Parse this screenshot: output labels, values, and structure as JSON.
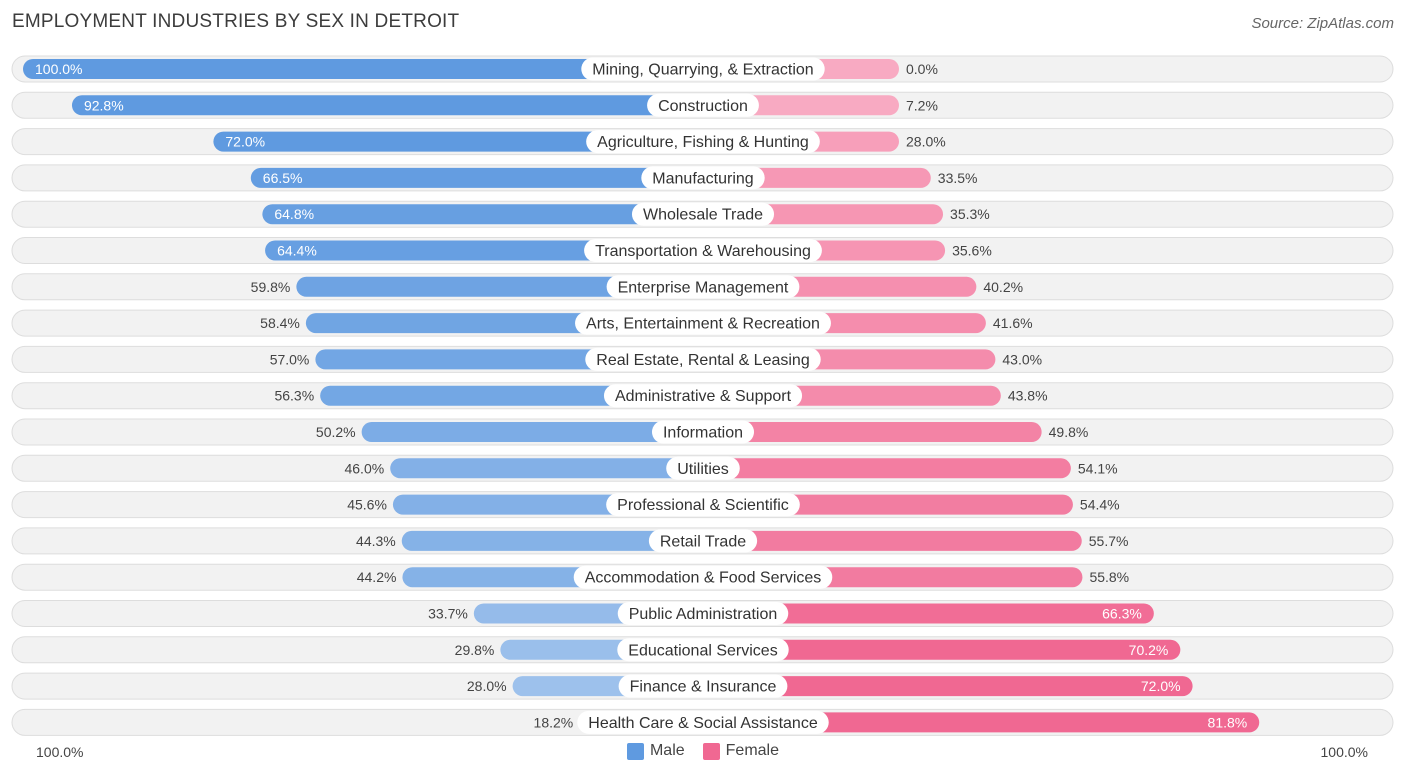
{
  "title": "EMPLOYMENT INDUSTRIES BY SEX IN DETROIT",
  "source": "Source: ZipAtlas.com",
  "colors": {
    "male_dark": "#5f9ae0",
    "male_light": "#a9c8ee",
    "female_dark": "#f06892",
    "female_light": "#f8aac2",
    "row_bg": "#f2f2f2",
    "row_border": "#dddddd"
  },
  "legend": {
    "male": "Male",
    "female": "Female"
  },
  "axis": {
    "left_label": "100.0%",
    "right_label": "100.0%"
  },
  "chart_data": {
    "type": "bar",
    "orientation": "horizontal-diverging",
    "title": "EMPLOYMENT INDUSTRIES BY SEX IN DETROIT",
    "categories": [
      "Mining, Quarrying, & Extraction",
      "Construction",
      "Agriculture, Fishing & Hunting",
      "Manufacturing",
      "Wholesale Trade",
      "Transportation & Warehousing",
      "Enterprise Management",
      "Arts, Entertainment & Recreation",
      "Real Estate, Rental & Leasing",
      "Administrative & Support",
      "Information",
      "Utilities",
      "Professional & Scientific",
      "Retail Trade",
      "Accommodation & Food Services",
      "Public Administration",
      "Educational Services",
      "Finance & Insurance",
      "Health Care & Social Assistance"
    ],
    "series": [
      {
        "name": "Male",
        "values": [
          100.0,
          92.8,
          72.0,
          66.5,
          64.8,
          64.4,
          59.8,
          58.4,
          57.0,
          56.3,
          50.2,
          46.0,
          45.6,
          44.3,
          44.2,
          33.7,
          29.8,
          28.0,
          18.2
        ]
      },
      {
        "name": "Female",
        "values": [
          0.0,
          7.2,
          28.0,
          33.5,
          35.3,
          35.6,
          40.2,
          41.6,
          43.0,
          43.8,
          49.8,
          54.1,
          54.4,
          55.7,
          55.8,
          66.3,
          70.2,
          72.0,
          81.8
        ]
      }
    ],
    "value_labels": {
      "male": [
        "100.0%",
        "92.8%",
        "72.0%",
        "66.5%",
        "64.8%",
        "64.4%",
        "59.8%",
        "58.4%",
        "57.0%",
        "56.3%",
        "50.2%",
        "46.0%",
        "45.6%",
        "44.3%",
        "44.2%",
        "33.7%",
        "29.8%",
        "28.0%",
        "18.2%"
      ],
      "female": [
        "0.0%",
        "7.2%",
        "28.0%",
        "33.5%",
        "35.3%",
        "35.6%",
        "40.2%",
        "41.6%",
        "43.0%",
        "43.8%",
        "49.8%",
        "54.1%",
        "54.4%",
        "55.7%",
        "55.8%",
        "66.3%",
        "70.2%",
        "72.0%",
        "81.8%"
      ]
    },
    "xlim": [
      -100,
      100
    ],
    "xlabel_left": "100.0%",
    "xlabel_right": "100.0%",
    "legend_position": "bottom-center"
  }
}
